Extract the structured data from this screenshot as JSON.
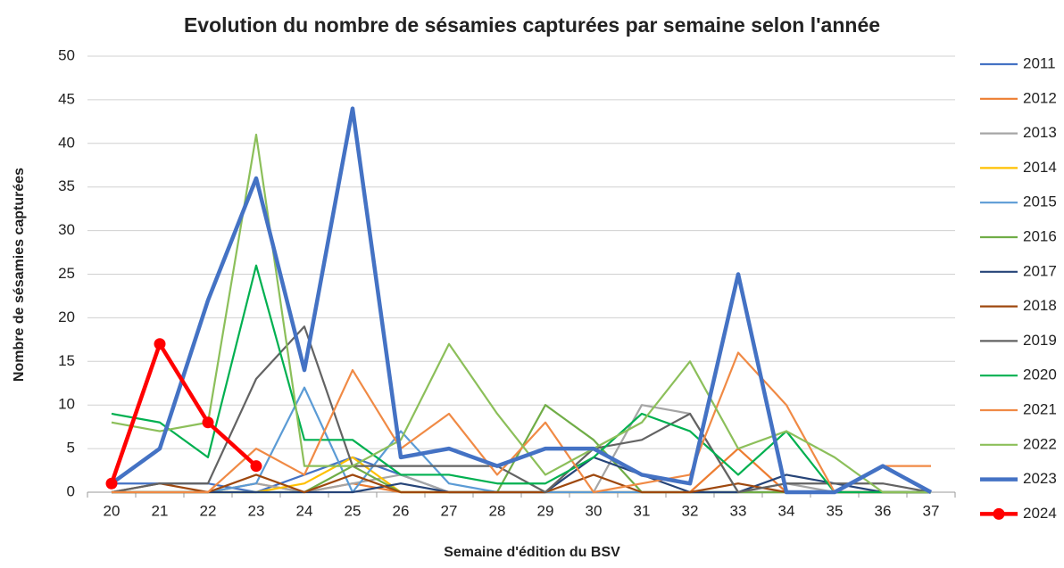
{
  "chart_data": {
    "type": "line",
    "title": "Evolution du nombre de sésamies capturées par semaine selon l'année",
    "x_label": "Semaine d'édition du BSV",
    "y_label": "Nombre de sésamies capturées",
    "categories": [
      "20",
      "21",
      "22",
      "23",
      "24",
      "25",
      "26",
      "27",
      "28",
      "29",
      "30",
      "31",
      "32",
      "33",
      "34",
      "35",
      "36",
      "37"
    ],
    "ylim": [
      0,
      50
    ],
    "yticks": [
      0,
      5,
      10,
      15,
      20,
      25,
      30,
      35,
      40,
      45,
      50
    ],
    "grid": true,
    "legend": "right",
    "series": [
      {
        "name": "2011",
        "color": "#4472c4",
        "line_width": 2.2,
        "values": [
          1,
          1,
          1,
          0,
          2,
          4,
          2,
          0,
          0,
          0,
          0,
          0,
          0,
          0,
          0,
          0,
          0,
          0
        ]
      },
      {
        "name": "2012",
        "color": "#ed7d31",
        "line_width": 2.2,
        "values": [
          0,
          0,
          0,
          1,
          0,
          1,
          0,
          0,
          0,
          0,
          0,
          0,
          0,
          5,
          0,
          0,
          0,
          0
        ]
      },
      {
        "name": "2013",
        "color": "#a5a5a5",
        "line_width": 2.2,
        "values": [
          0,
          0,
          0,
          1,
          0,
          1,
          2,
          0,
          0,
          0,
          0,
          10,
          9,
          0,
          1,
          0,
          0,
          0
        ]
      },
      {
        "name": "2014",
        "color": "#ffc000",
        "line_width": 2.2,
        "values": [
          0,
          0,
          0,
          0,
          1,
          4,
          0,
          0,
          0,
          0,
          0,
          0,
          0,
          0,
          0,
          0,
          0,
          0
        ]
      },
      {
        "name": "2015",
        "color": "#5b9bd5",
        "line_width": 2.2,
        "values": [
          0,
          0,
          0,
          1,
          12,
          0,
          7,
          1,
          0,
          0,
          0,
          0,
          0,
          0,
          0,
          0,
          0,
          0
        ]
      },
      {
        "name": "2016",
        "color": "#70ad47",
        "line_width": 2.2,
        "values": [
          0,
          0,
          0,
          0,
          0,
          3,
          0,
          0,
          0,
          10,
          6,
          0,
          0,
          0,
          0,
          0,
          0,
          0
        ]
      },
      {
        "name": "2017",
        "color": "#264478",
        "line_width": 2.2,
        "values": [
          0,
          0,
          0,
          0,
          0,
          0,
          1,
          0,
          0,
          0,
          4,
          2,
          0,
          0,
          2,
          1,
          0,
          0
        ]
      },
      {
        "name": "2018",
        "color": "#9e480e",
        "line_width": 2.2,
        "values": [
          0,
          1,
          0,
          2,
          0,
          2,
          0,
          0,
          0,
          0,
          2,
          0,
          0,
          1,
          0,
          0,
          0,
          0
        ]
      },
      {
        "name": "2019",
        "color": "#636363",
        "line_width": 2.2,
        "values": [
          0,
          1,
          1,
          13,
          19,
          3,
          3,
          3,
          3,
          0,
          5,
          6,
          9,
          0,
          1,
          1,
          1,
          0
        ]
      },
      {
        "name": "2020",
        "color": "#00b050",
        "line_width": 2.2,
        "values": [
          9,
          8,
          4,
          26,
          6,
          6,
          2,
          2,
          1,
          1,
          4,
          9,
          7,
          2,
          7,
          0,
          0,
          0
        ]
      },
      {
        "name": "2021",
        "color": "#f08a45",
        "line_width": 2.2,
        "values": [
          0,
          0,
          0,
          5,
          2,
          14,
          5,
          9,
          2,
          8,
          0,
          1,
          2,
          16,
          10,
          0,
          3,
          3
        ]
      },
      {
        "name": "2022",
        "color": "#8cbf5a",
        "line_width": 2.2,
        "values": [
          8,
          7,
          8,
          41,
          3,
          3,
          6,
          17,
          9,
          2,
          5,
          8,
          15,
          5,
          7,
          4,
          0,
          0
        ]
      },
      {
        "name": "2023",
        "color": "#4472c4",
        "line_width": 4.5,
        "values": [
          1,
          5,
          22,
          36,
          14,
          44,
          4,
          5,
          3,
          5,
          5,
          2,
          1,
          25,
          0,
          0,
          3,
          0
        ]
      },
      {
        "name": "2024",
        "color": "#ff0000",
        "line_width": 4.5,
        "marker": "circle",
        "values": [
          1,
          17,
          8,
          3,
          null,
          null,
          null,
          null,
          null,
          null,
          null,
          null,
          null,
          null,
          null,
          null,
          null,
          null
        ]
      }
    ]
  }
}
